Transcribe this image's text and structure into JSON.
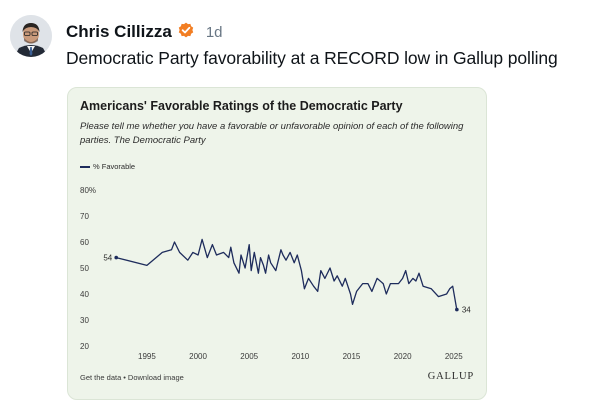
{
  "post": {
    "author_name": "Chris Cillizza",
    "timestamp": "1d",
    "text": "Democratic Party favorability at a RECORD low in Gallup polling"
  },
  "icons": {
    "avatar": "avatar",
    "verified": "verified-badge-icon"
  },
  "colors": {
    "verified": "#f27e23",
    "line": "#1e2c5c",
    "card_bg": "#eef4ea"
  },
  "chart_data": {
    "type": "line",
    "title": "Americans' Favorable Ratings of the Democratic Party",
    "subtitle": "Please tell me whether you have a favorable or unfavorable opinion of each of the following parties. The Democratic Party",
    "xlabel": "",
    "ylabel": "",
    "xlim": [
      1991,
      2026
    ],
    "ylim": [
      20,
      80
    ],
    "y_ticks": [
      "20",
      "30",
      "40",
      "50",
      "60",
      "70",
      "80%"
    ],
    "x_ticks": [
      "1995",
      "2000",
      "2005",
      "2010",
      "2015",
      "2020",
      "2025"
    ],
    "grid": false,
    "legend_position": "top-left",
    "series": [
      {
        "name": "% Favorable",
        "x": [
          1992.0,
          1995.0,
          1996.5,
          1997.4,
          1997.7,
          1998.2,
          1999.0,
          1999.5,
          2000.0,
          2000.4,
          2000.9,
          2001.4,
          2001.8,
          2002.5,
          2003.0,
          2003.2,
          2003.5,
          2004.0,
          2004.2,
          2004.6,
          2005.0,
          2005.2,
          2005.5,
          2005.9,
          2006.1,
          2006.4,
          2006.6,
          2006.9,
          2007.1,
          2007.6,
          2008.1,
          2008.3,
          2008.6,
          2009.0,
          2009.4,
          2009.7,
          2010.1,
          2010.4,
          2010.8,
          2011.3,
          2011.7,
          2012.0,
          2012.4,
          2012.9,
          2013.3,
          2013.6,
          2014.1,
          2014.4,
          2014.9,
          2015.1,
          2015.5,
          2016.1,
          2016.6,
          2017.0,
          2017.5,
          2018.1,
          2018.4,
          2018.8,
          2019.2,
          2019.6,
          2020.0,
          2020.3,
          2020.6,
          2021.0,
          2021.3,
          2021.6,
          2022.0,
          2022.8,
          2023.5,
          2024.3,
          2024.6,
          2024.9,
          2025.3
        ],
        "values": [
          54,
          51,
          56,
          57,
          60,
          56,
          53,
          56,
          55,
          61,
          54,
          59,
          55,
          56,
          54,
          58,
          52,
          48,
          55,
          50,
          59,
          49,
          56,
          48,
          54,
          51,
          48,
          55,
          52,
          49,
          57,
          55,
          53,
          56,
          52,
          55,
          49,
          42,
          46,
          43,
          41,
          49,
          46,
          50,
          45,
          47,
          43,
          46,
          40,
          36,
          41,
          44,
          44,
          41,
          46,
          44,
          40,
          44,
          44,
          44,
          46,
          49,
          44,
          46,
          45,
          48,
          43,
          42,
          39,
          40,
          42,
          43,
          34
        ],
        "start_label": "54",
        "end_label": "34"
      }
    ]
  },
  "footer": {
    "get_data": "Get the data",
    "separator": "•",
    "download": "Download image",
    "brand": "GALLUP"
  }
}
